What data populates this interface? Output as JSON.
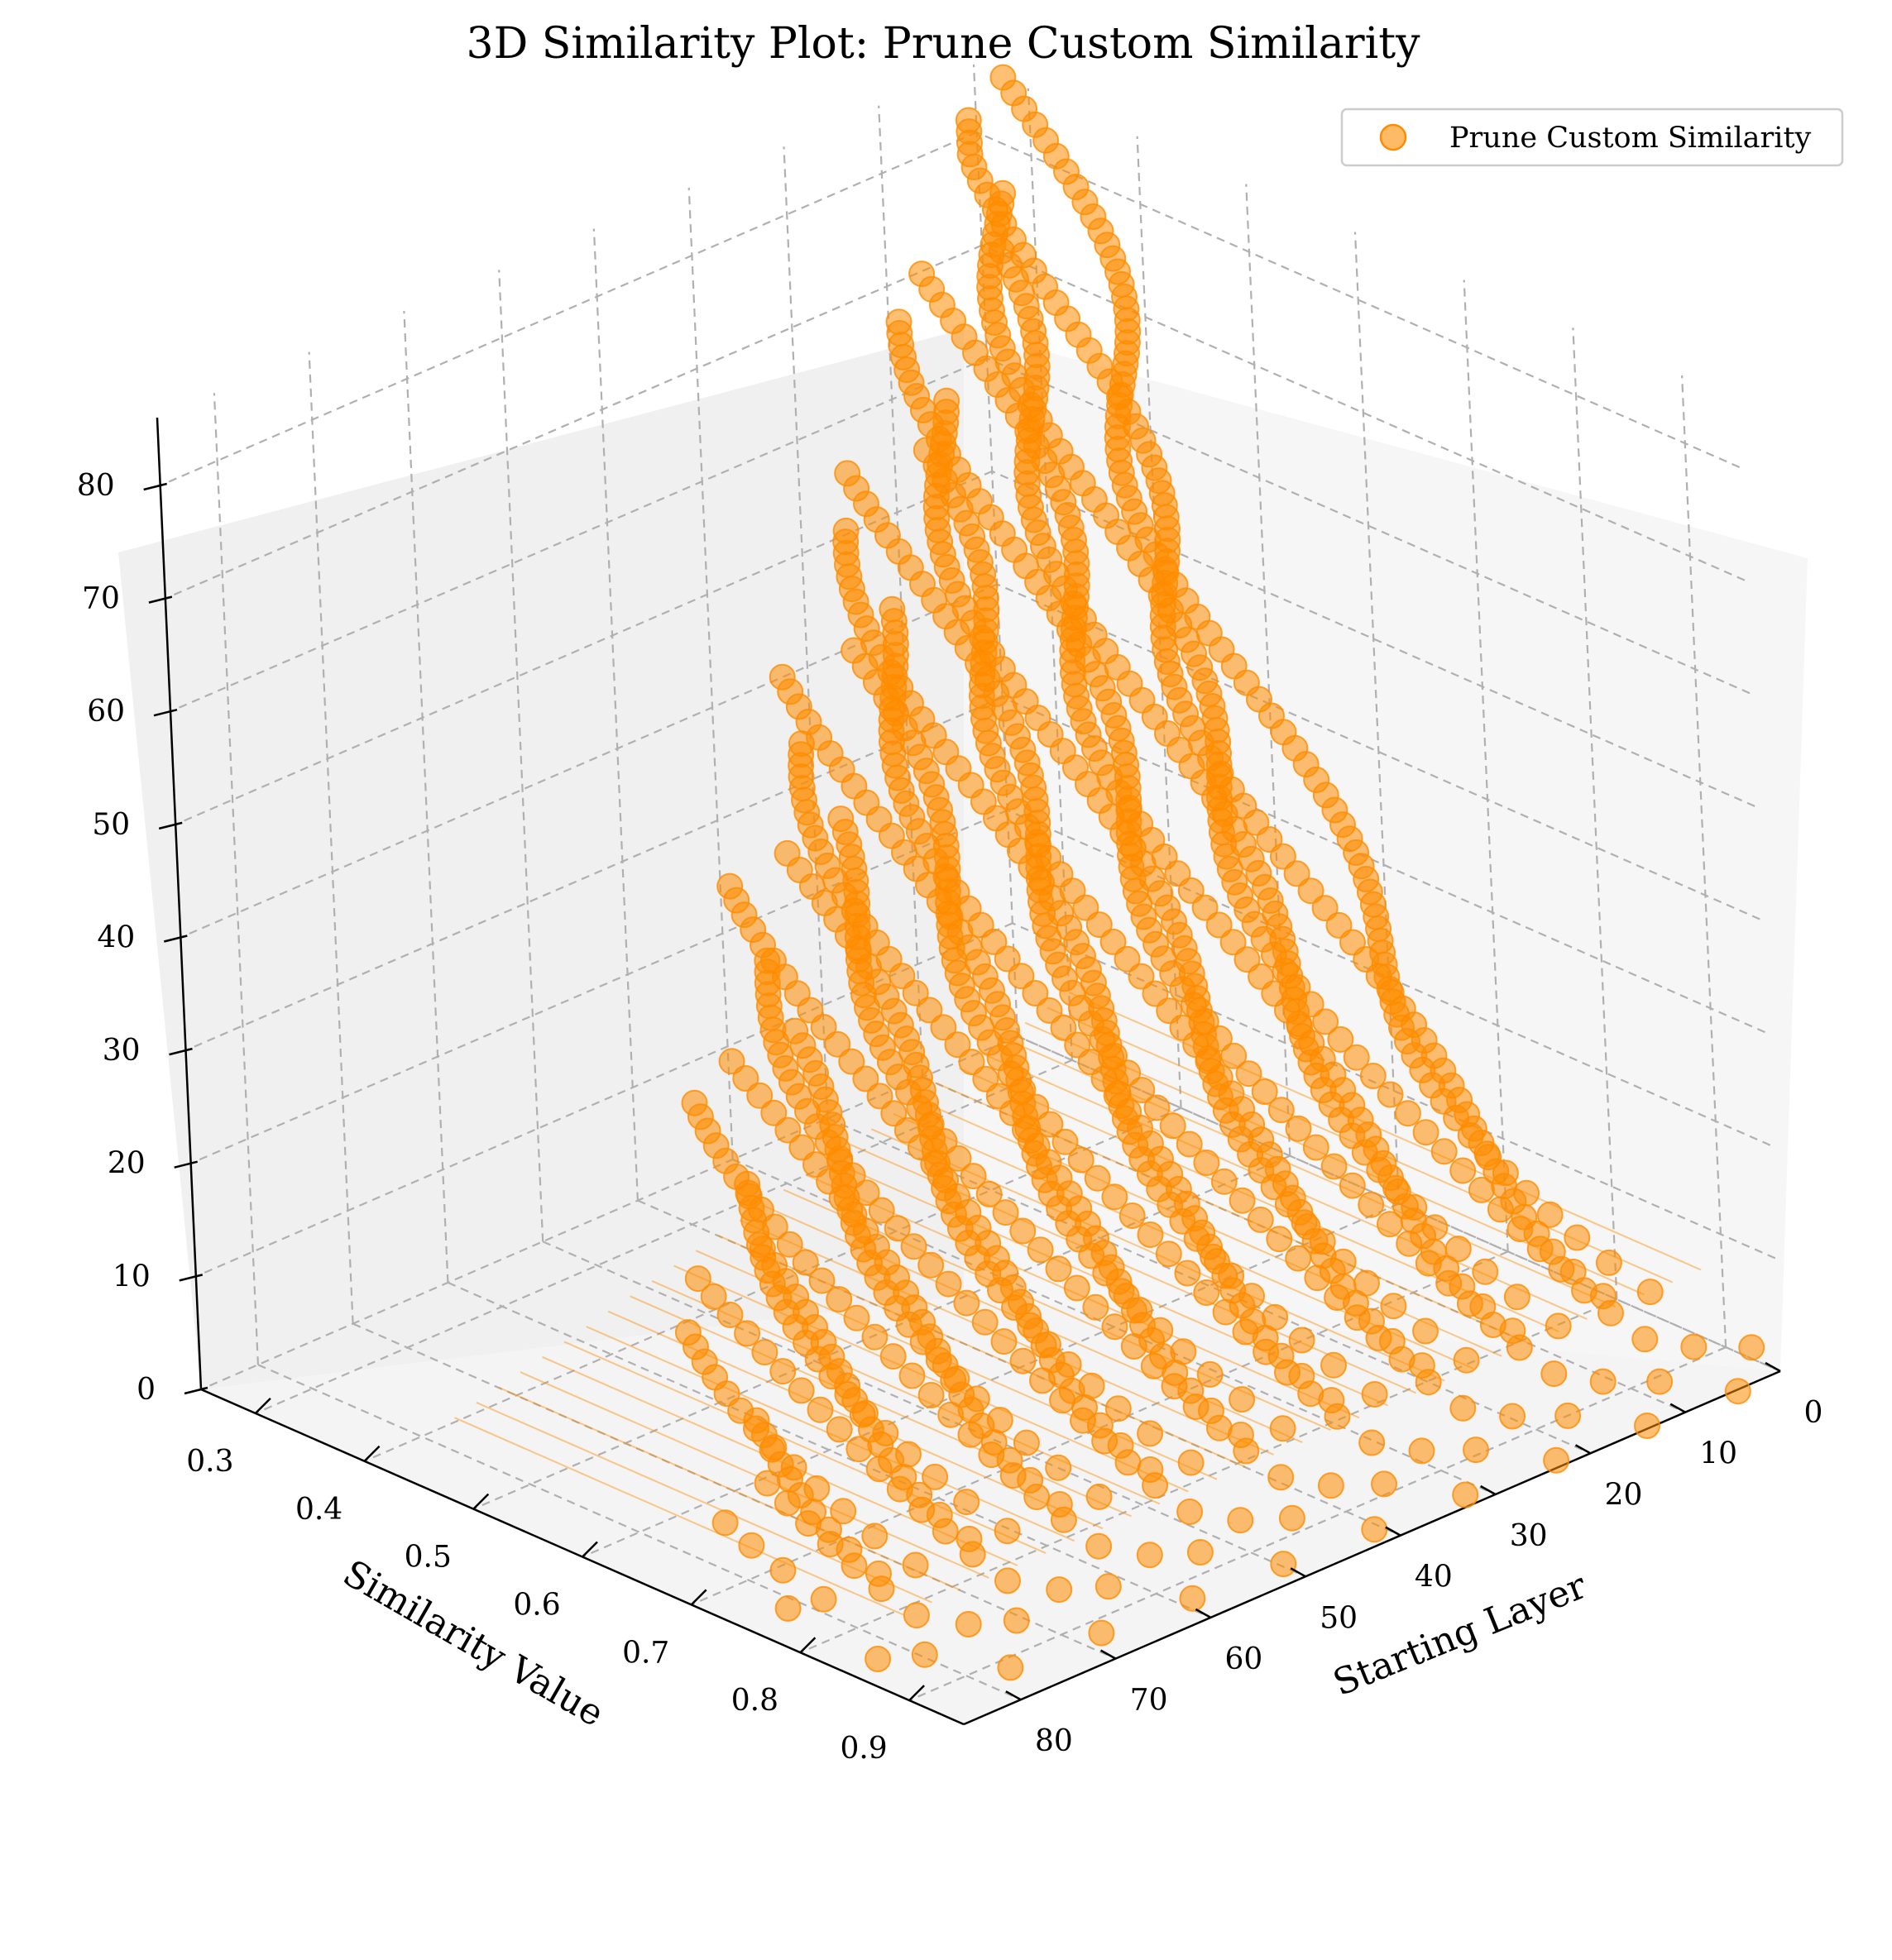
{
  "chart_data": {
    "type": "scatter",
    "projection": "3d",
    "title": "3D Similarity Plot: Prune Custom Similarity",
    "xlabel": "Similarity Value",
    "ylabel": "Starting Layer",
    "zlabel": "",
    "xlim": [
      0.25,
      0.95
    ],
    "ylim": [
      0,
      86
    ],
    "zlim": [
      0,
      86
    ],
    "x_ticks": [
      "0.3",
      "0.4",
      "0.5",
      "0.6",
      "0.7",
      "0.8",
      "0.9"
    ],
    "y_ticks": [
      "0",
      "10",
      "20",
      "30",
      "40",
      "50",
      "60",
      "70",
      "80"
    ],
    "z_ticks": [
      "0",
      "10",
      "20",
      "30",
      "40",
      "50",
      "60",
      "70",
      "80"
    ],
    "grid": true,
    "legend_position": "top-right",
    "series": [
      {
        "name": "Prune Custom Similarity",
        "color": "#ff8c00",
        "marker": "circle",
        "connected_by_lines": true,
        "points_per_start_layer": "one point per block size from 1 to (86 - start layer); similarity falls from about 0.85-0.95 at block size 1 toward about 0.3 for the longest blocks",
        "start_layers": [
          0,
          3,
          6,
          9,
          12,
          15,
          18,
          21,
          24,
          27,
          30,
          33,
          36,
          39,
          42,
          45,
          48,
          51,
          54,
          57,
          60,
          63,
          66,
          69,
          72,
          75,
          78,
          81,
          84
        ]
      }
    ]
  }
}
